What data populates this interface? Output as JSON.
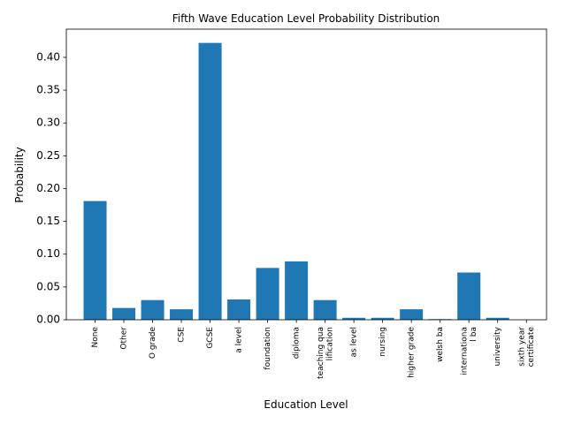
{
  "chart_data": {
    "type": "bar",
    "title": "Fifth Wave Education Level Probability Distribution",
    "xlabel": "Education Level",
    "ylabel": "Probability",
    "categories": [
      [
        "None"
      ],
      [
        "Other"
      ],
      [
        "O grade"
      ],
      [
        "CSE"
      ],
      [
        "GCSE"
      ],
      [
        "a level"
      ],
      [
        "foundation"
      ],
      [
        "diploma"
      ],
      [
        "teaching qua",
        "lification"
      ],
      [
        "as level"
      ],
      [
        "nursing"
      ],
      [
        "higher grade"
      ],
      [
        "welsh ba"
      ],
      [
        "internationa",
        "l ba"
      ],
      [
        "university"
      ],
      [
        "sixth year",
        "certificate"
      ]
    ],
    "values": [
      0.181,
      0.018,
      0.03,
      0.016,
      0.422,
      0.031,
      0.079,
      0.089,
      0.03,
      0.003,
      0.003,
      0.016,
      0.001,
      0.072,
      0.003,
      0.0
    ],
    "ylim": [
      0,
      0.443
    ],
    "yticks": [
      "0.00",
      "0.05",
      "0.10",
      "0.15",
      "0.20",
      "0.25",
      "0.30",
      "0.35",
      "0.40"
    ],
    "color": "#1f77b4",
    "grid": false
  }
}
